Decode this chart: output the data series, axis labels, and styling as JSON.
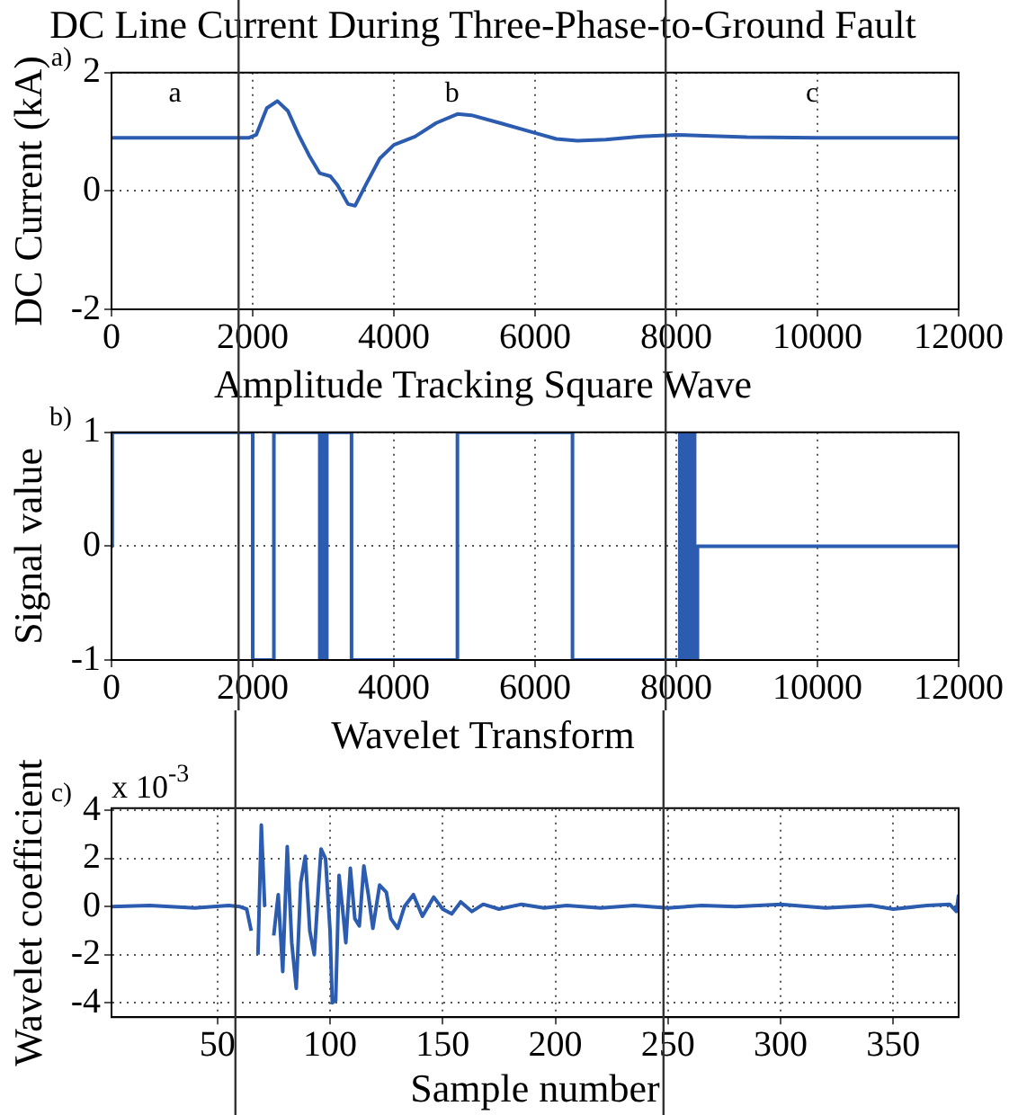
{
  "chart_data": [
    {
      "type": "line",
      "title": "DC Line Current During Three-Phase-to-Ground Fault",
      "ylabel": "DC Current (kA)",
      "x": [
        0,
        1950,
        2050,
        2200,
        2350,
        2500,
        2650,
        2800,
        2950,
        3100,
        3200,
        3350,
        3450,
        3600,
        3800,
        4000,
        4300,
        4600,
        4900,
        5100,
        5500,
        6000,
        6300,
        6600,
        7000,
        7500,
        8000,
        8500,
        9000,
        10000,
        12000
      ],
      "series": [
        {
          "color": "#2b5cb0",
          "values": [
            0.9,
            0.9,
            0.95,
            1.4,
            1.52,
            1.35,
            0.95,
            0.6,
            0.3,
            0.25,
            0.1,
            -0.22,
            -0.25,
            0.1,
            0.55,
            0.78,
            0.92,
            1.15,
            1.3,
            1.28,
            1.15,
            0.98,
            0.88,
            0.85,
            0.87,
            0.92,
            0.95,
            0.93,
            0.91,
            0.9,
            0.9
          ]
        }
      ],
      "xlim": [
        0,
        12000
      ],
      "xticks": [
        0,
        2000,
        4000,
        6000,
        8000,
        10000,
        12000
      ],
      "ylim": [
        -2,
        2
      ],
      "yticks": [
        -2,
        0,
        2
      ],
      "grid": true,
      "ref_lines": [
        {
          "axis": "x",
          "value": 1800,
          "color": "#333333"
        },
        {
          "axis": "x",
          "value": 7850,
          "color": "#333333"
        }
      ],
      "annotations": [
        "a)",
        "a",
        "b",
        "c"
      ]
    },
    {
      "type": "step",
      "title": "Amplitude Tracking Square Wave",
      "ylabel": "Signal value",
      "x": [
        0,
        10,
        2000,
        2300,
        2950,
        2990,
        3020,
        3050,
        3400,
        4900,
        6500,
        6530,
        8050,
        8100,
        8150,
        8200,
        8230,
        8260,
        8300,
        9500,
        12000
      ],
      "series": [
        {
          "color": "#2b5cb0",
          "values": [
            1,
            0,
            1,
            -1,
            1,
            -1,
            1,
            -1,
            1,
            -1,
            1,
            1,
            -1,
            1,
            -1,
            1,
            -1,
            1,
            -1,
            0,
            0
          ]
        }
      ],
      "xlim": [
        0,
        12000
      ],
      "xticks": [
        0,
        2000,
        4000,
        6000,
        8000,
        10000,
        12000
      ],
      "ylim": [
        -1,
        1
      ],
      "yticks": [
        -1,
        0,
        1
      ],
      "grid": true,
      "ref_lines": [
        {
          "axis": "x",
          "value": 1800,
          "color": "#333333"
        },
        {
          "axis": "x",
          "value": 7850,
          "color": "#333333"
        }
      ],
      "annotations": [
        "b)"
      ]
    },
    {
      "type": "line",
      "title": "Wavelet Transform",
      "ylabel": "Wavelet coefficient",
      "xlabel": "Sample number",
      "x": [
        3,
        20,
        40,
        55,
        60,
        63,
        65,
        66.5,
        68,
        69.5,
        71,
        72,
        73,
        74,
        75,
        77,
        79,
        81,
        83,
        85,
        87,
        89,
        91,
        93,
        95,
        96,
        98,
        100,
        101,
        102.5,
        104,
        106,
        107,
        109,
        111,
        113,
        115,
        117,
        119,
        122,
        125,
        127,
        130,
        133,
        137,
        141,
        146,
        150,
        154,
        158,
        163,
        168,
        175,
        185,
        195,
        205,
        220,
        235,
        250,
        265,
        280,
        300,
        320,
        340,
        350,
        365,
        375,
        378,
        379
      ],
      "series": [
        {
          "color": "#2b5cb0",
          "values": [
            0,
            0.05,
            -0.05,
            0.05,
            0,
            -0.1,
            -1,
            null,
            -2,
            3.4,
            0,
            null,
            null,
            null,
            -1.2,
            0.5,
            -2.7,
            2.5,
            -1.5,
            -3.4,
            1,
            2.1,
            -1,
            -2,
            1,
            2.4,
            2,
            -1,
            -4,
            -3.9,
            1.3,
            -0.5,
            -1.5,
            1.6,
            -0.5,
            -0.8,
            1.7,
            0.5,
            -0.9,
            0.9,
            0.6,
            -0.5,
            -0.9,
            0,
            0.5,
            -0.4,
            0.4,
            -0.1,
            -0.3,
            0.2,
            -0.2,
            0.1,
            -0.1,
            0.1,
            -0.05,
            0.05,
            -0.05,
            0.05,
            -0.05,
            0.05,
            0,
            0.1,
            -0.05,
            0.05,
            -0.1,
            0.05,
            0.1,
            -0.2,
            0.5
          ]
        }
      ],
      "xlim": [
        3,
        379
      ],
      "xticks": [
        50,
        100,
        150,
        200,
        250,
        300,
        350
      ],
      "ylim": [
        -4.6,
        4.1
      ],
      "yticks": [
        -4,
        -2,
        0,
        2,
        4
      ],
      "grid": true,
      "ref_lines": [
        {
          "axis": "x",
          "value": 58,
          "color": "#333333"
        },
        {
          "axis": "x",
          "value": 248,
          "color": "#333333"
        }
      ],
      "annotations": [
        "c)",
        "x 10$^{-3}$"
      ]
    }
  ]
}
